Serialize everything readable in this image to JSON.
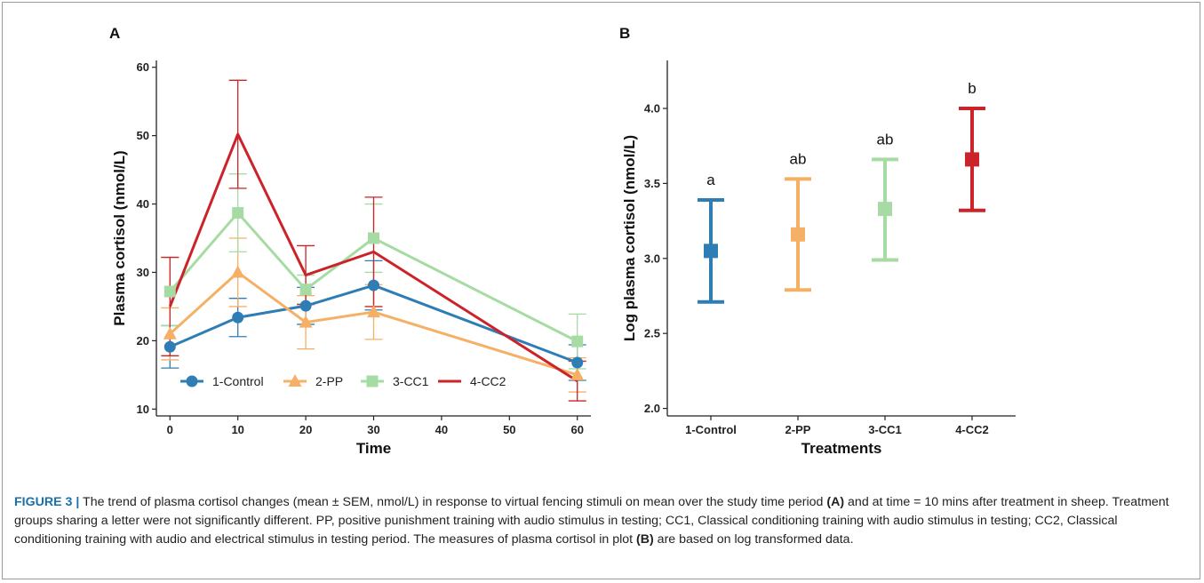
{
  "colors": {
    "1-Control": "#2e7eb5",
    "2-PP": "#f5b066",
    "3-CC1": "#a6dca3",
    "4-CC2": "#cc2229",
    "caption_title": "#1b6fa8"
  },
  "chart_data": [
    {
      "type": "line",
      "panel": "A",
      "xlabel": "Time",
      "ylabel": "Plasma cortisol  (nmol/L)",
      "xlim": [
        -2,
        62
      ],
      "ylim": [
        9,
        61
      ],
      "xticks": [
        0,
        10,
        20,
        30,
        40,
        50,
        60
      ],
      "yticks": [
        10,
        20,
        30,
        40,
        50,
        60
      ],
      "grid": false,
      "legend": "bottom-left",
      "x": [
        0,
        10,
        20,
        30,
        60
      ],
      "series": [
        {
          "name": "1-Control",
          "marker": "circle",
          "values": [
            19.1,
            23.4,
            25.1,
            28.1,
            16.8
          ],
          "err": [
            3.1,
            2.8,
            2.7,
            3.6,
            2.6
          ]
        },
        {
          "name": "2-PP",
          "marker": "triangle",
          "values": [
            21.0,
            30.0,
            22.7,
            24.2,
            15.0
          ],
          "err": [
            3.8,
            5.0,
            3.9,
            4.0,
            2.5
          ]
        },
        {
          "name": "3-CC1",
          "marker": "square",
          "values": [
            27.2,
            38.7,
            27.5,
            35.0,
            19.9
          ],
          "err": [
            5.0,
            5.7,
            2.1,
            5.0,
            4.0
          ]
        },
        {
          "name": "4-CC2",
          "marker": "none",
          "values": [
            25.0,
            50.2,
            29.6,
            33.0,
            14.1
          ],
          "err": [
            7.2,
            7.9,
            4.3,
            8.0,
            2.9
          ]
        }
      ]
    },
    {
      "type": "scatter",
      "panel": "B",
      "xlabel": "Treatments",
      "ylabel": "Log plasma cortisol  (nmol/L)",
      "ylim": [
        1.95,
        4.32
      ],
      "yticks": [
        2.0,
        2.5,
        3.0,
        3.5,
        4.0
      ],
      "grid": false,
      "categories": [
        "1-Control",
        "2-PP",
        "3-CC1",
        "4-CC2"
      ],
      "values": [
        3.05,
        3.16,
        3.33,
        3.66
      ],
      "lower": [
        2.71,
        2.79,
        2.99,
        3.32
      ],
      "upper": [
        3.39,
        3.53,
        3.66,
        4.0
      ],
      "labels": [
        "a",
        "ab",
        "ab",
        "b"
      ]
    }
  ],
  "caption": {
    "title": "FIGURE 3 |",
    "part1": " The trend of plasma cortisol changes (mean ± SEM, nmol/L) in response to virtual fencing stimuli on mean over the study time period ",
    "ref_a": "(A)",
    "part2": " and at time = 10 mins after treatment in sheep. Treatment groups sharing a letter were not significantly different. PP, positive punishment training with audio stimulus in testing; CC1, Classical conditioning training with audio stimulus in testing; CC2, Classical conditioning training with audio and electrical stimulus in testing period. The measures of plasma cortisol in plot ",
    "ref_b": "(B)",
    "part3": " are based on log transformed data."
  }
}
